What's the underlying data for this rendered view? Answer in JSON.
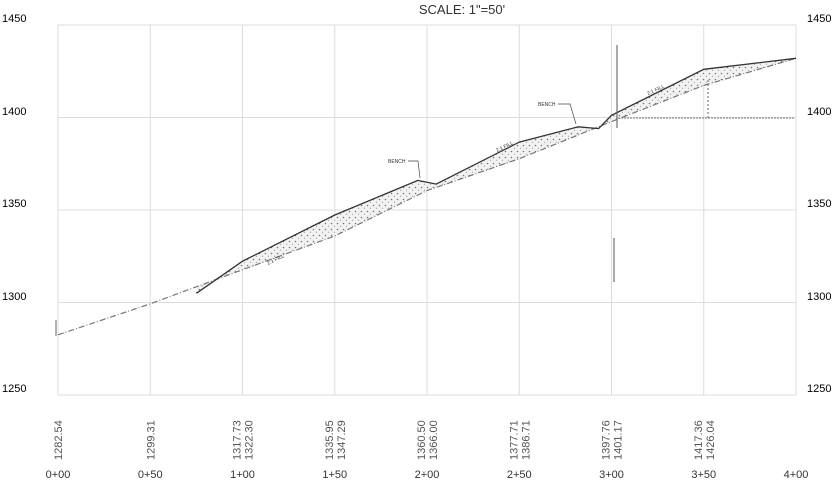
{
  "title": "SCALE: 1\"=50'",
  "left_axis_labels": [
    "1450",
    "1400",
    "1350",
    "1300",
    "1250"
  ],
  "right_axis_labels": [
    "1450",
    "1400",
    "1350",
    "1300",
    "1250"
  ],
  "elevation_labels": [
    [
      "1282.54"
    ],
    [
      "1299.31"
    ],
    [
      "1317.73",
      "1322.30"
    ],
    [
      "1335.95",
      "1347.29"
    ],
    [
      "1360.50",
      "1366.00"
    ],
    [
      "1377.71",
      "1386.71"
    ],
    [
      "1397.76",
      "1401.17"
    ],
    [
      "1417.36",
      "1426.04"
    ]
  ],
  "stations": [
    "0+00",
    "0+50",
    "1+00",
    "1+50",
    "2+00",
    "2+50",
    "3+00",
    "3+50",
    "4+00"
  ],
  "annotations": {
    "fill_1": "2:1 FILL",
    "bench_1": "BENCH",
    "fill_2": "2:1 FILL",
    "bench_2": "BENCH",
    "fill_3": "2:1 FILL"
  },
  "chart_data": {
    "type": "line",
    "title": "SCALE: 1\"=50'",
    "x_unit": "station (ft)",
    "xlim": [
      0,
      400
    ],
    "ylim": [
      1250,
      1450
    ],
    "y_ticks": [
      1250,
      1300,
      1350,
      1400,
      1450
    ],
    "x_ticks": [
      "0+00",
      "0+50",
      "1+00",
      "1+50",
      "2+00",
      "2+50",
      "3+00",
      "3+50",
      "4+00"
    ],
    "grid": true,
    "series": [
      {
        "x": [
          0,
          50,
          100,
          150,
          200,
          250,
          300,
          350,
          400
        ],
        "values": [
          1282.54,
          1299.31,
          1317.73,
          1335.95,
          1360.5,
          1377.71,
          1397.76,
          1417.36,
          1432
        ]
      },
      {
        "x": [
          75,
          100,
          150,
          195,
          205,
          250,
          282,
          293,
          300,
          350,
          400
        ],
        "values": [
          1305,
          1322.3,
          1347.29,
          1366.0,
          1364,
          1386.71,
          1395,
          1394,
          1401.17,
          1426.04,
          1432
        ]
      }
    ]
  }
}
